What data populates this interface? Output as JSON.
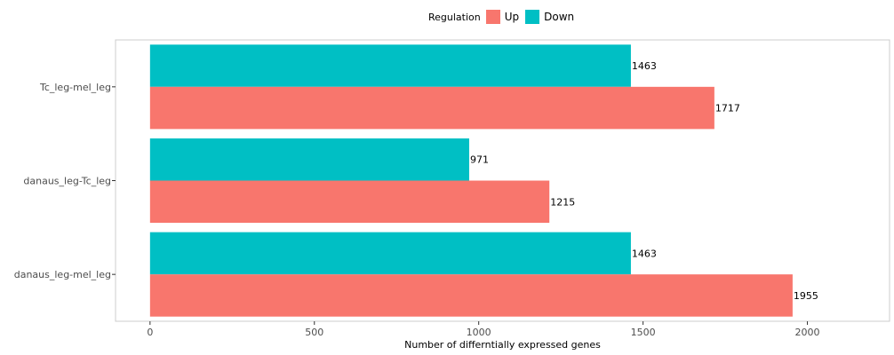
{
  "legend": {
    "title": "Regulation",
    "items": [
      {
        "label": "Up",
        "color": "#F8766D"
      },
      {
        "label": "Down",
        "color": "#00BFC4"
      }
    ]
  },
  "chart_data": {
    "type": "bar",
    "orientation": "horizontal",
    "categories": [
      "Tc_leg-mel_leg",
      "danaus_leg-Tc_leg",
      "danaus_leg-mel_leg"
    ],
    "series": [
      {
        "name": "Down",
        "values": [
          1463,
          971,
          1463
        ],
        "color": "#00BFC4"
      },
      {
        "name": "Up",
        "values": [
          1717,
          1215,
          1955
        ],
        "color": "#F8766D"
      }
    ],
    "xlabel": "Number of differntially expressed genes",
    "ylabel": "",
    "xlim": [
      -105,
      2250
    ],
    "xticks": [
      0,
      500,
      1000,
      1500,
      2000
    ],
    "data_labels": true,
    "legend_position": "top",
    "grid": false
  }
}
